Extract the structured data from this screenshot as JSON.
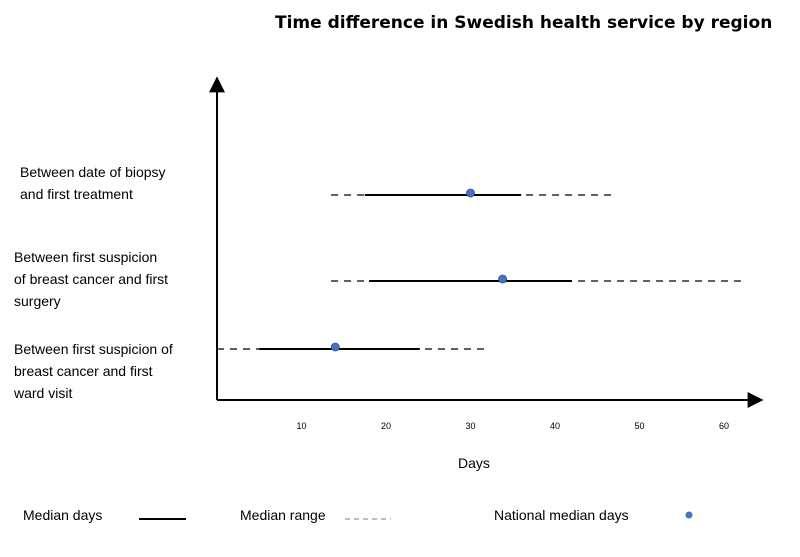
{
  "chart_data": {
    "type": "range",
    "title": "Time difference in Swedish health service by region",
    "xlabel": "Days",
    "ylabel": "",
    "xlim": [
      0,
      62
    ],
    "x_ticks": [
      10,
      20,
      30,
      40,
      50,
      60
    ],
    "categories": [
      "Between date of biopsy\nand first treatment",
      "Between first suspicion\nof breast cancer and first\nsurgery",
      "Between first suspicion of\nbreast cancer and first\nward visit"
    ],
    "series": [
      {
        "name": "Median days",
        "style": "solid line",
        "values": [
          [
            17.5,
            36
          ],
          [
            18,
            42
          ],
          [
            5,
            24
          ]
        ]
      },
      {
        "name": "Median range",
        "style": "dashed line",
        "values": [
          [
            13.5,
            47
          ],
          [
            13.5,
            62
          ],
          [
            0,
            32
          ]
        ]
      },
      {
        "name": "National median days",
        "style": "dot",
        "color": "#4472c4",
        "values": [
          30,
          33.8,
          14
        ]
      }
    ],
    "legend": {
      "placement": "bottom"
    },
    "grid": false
  }
}
